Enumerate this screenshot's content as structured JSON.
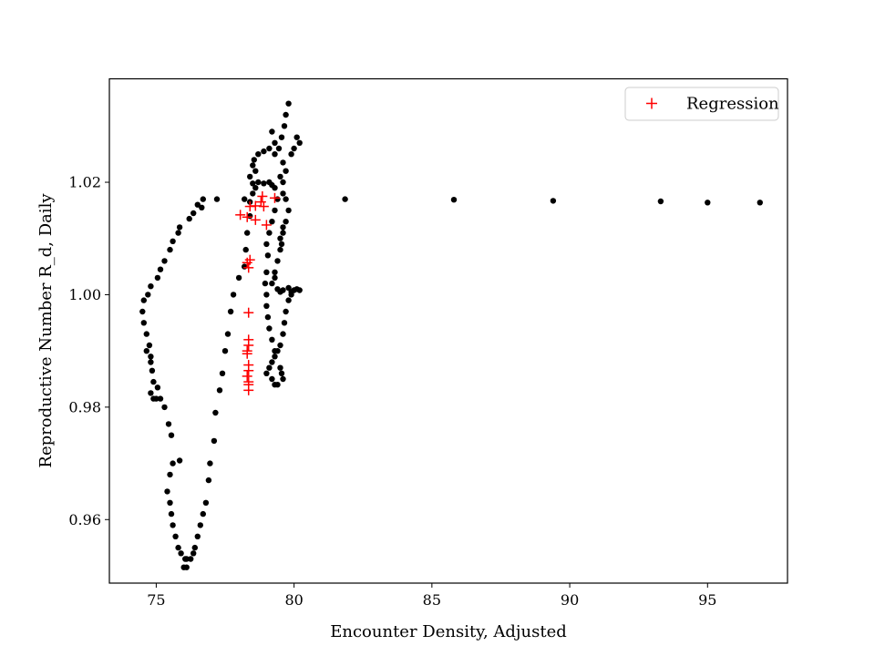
{
  "chart_data": {
    "type": "scatter",
    "xlabel": "Encounter Density, Adjusted",
    "ylabel": "Reproductive Number R_d, Daily",
    "xlim": [
      73.3,
      97.9
    ],
    "ylim": [
      0.9487,
      1.0384
    ],
    "xticks": [
      75,
      80,
      85,
      90,
      95
    ],
    "yticks": [
      0.96,
      0.98,
      1.0,
      1.02
    ],
    "xtick_labels": [
      "75",
      "80",
      "85",
      "90",
      "95"
    ],
    "ytick_labels": [
      "0.96",
      "0.98",
      "1.00",
      "1.02"
    ],
    "grid": false,
    "legend": {
      "position": "top-right",
      "entries": [
        "Regression"
      ]
    },
    "series": [
      {
        "marker": "dot",
        "color": "#000000",
        "points": [
          [
            96.9,
            1.0164
          ],
          [
            95.0,
            1.0164
          ],
          [
            93.3,
            1.0166
          ],
          [
            89.4,
            1.0167
          ],
          [
            85.8,
            1.0169
          ],
          [
            81.85,
            1.017
          ],
          [
            79.8,
            1.034
          ],
          [
            79.7,
            1.032
          ],
          [
            79.65,
            1.03
          ],
          [
            79.55,
            1.028
          ],
          [
            79.45,
            1.026
          ],
          [
            79.3,
            1.025
          ],
          [
            79.2,
            1.029
          ],
          [
            79.3,
            1.027
          ],
          [
            80.1,
            1.028
          ],
          [
            80.2,
            1.027
          ],
          [
            80.0,
            1.026
          ],
          [
            79.9,
            1.025
          ],
          [
            79.6,
            1.0235
          ],
          [
            79.7,
            1.022
          ],
          [
            79.5,
            1.021
          ],
          [
            79.6,
            1.02
          ],
          [
            79.6,
            1.018
          ],
          [
            79.7,
            1.017
          ],
          [
            79.8,
            1.015
          ],
          [
            79.7,
            1.013
          ],
          [
            79.6,
            1.012
          ],
          [
            79.6,
            1.011
          ],
          [
            79.5,
            1.01
          ],
          [
            79.55,
            1.009
          ],
          [
            79.5,
            1.008
          ],
          [
            79.4,
            1.006
          ],
          [
            79.3,
            1.004
          ],
          [
            79.3,
            1.003
          ],
          [
            79.2,
            1.002
          ],
          [
            79.4,
            1.001
          ],
          [
            79.5,
            1.0005
          ],
          [
            79.6,
            1.0008
          ],
          [
            79.8,
            1.0012
          ],
          [
            79.9,
            1.0005
          ],
          [
            80.0,
            1.0008
          ],
          [
            80.1,
            1.001
          ],
          [
            80.2,
            1.0008
          ],
          [
            79.9,
            1.0
          ],
          [
            79.8,
            0.999
          ],
          [
            79.7,
            0.997
          ],
          [
            79.65,
            0.995
          ],
          [
            79.6,
            0.993
          ],
          [
            79.5,
            0.991
          ],
          [
            79.4,
            0.99
          ],
          [
            79.3,
            0.989
          ],
          [
            79.2,
            0.988
          ],
          [
            79.1,
            0.987
          ],
          [
            79.0,
            0.986
          ],
          [
            79.2,
            0.985
          ],
          [
            79.3,
            0.984
          ],
          [
            79.4,
            0.984
          ],
          [
            79.6,
            0.985
          ],
          [
            79.55,
            0.986
          ],
          [
            79.5,
            0.987
          ],
          [
            79.3,
            0.99
          ],
          [
            79.2,
            0.992
          ],
          [
            79.1,
            0.994
          ],
          [
            79.05,
            0.996
          ],
          [
            79.0,
            0.998
          ],
          [
            79.0,
            1.0
          ],
          [
            78.95,
            1.002
          ],
          [
            79.0,
            1.004
          ],
          [
            79.05,
            1.007
          ],
          [
            79.0,
            1.009
          ],
          [
            79.1,
            1.011
          ],
          [
            79.2,
            1.013
          ],
          [
            79.3,
            1.015
          ],
          [
            79.4,
            1.017
          ],
          [
            79.3,
            1.019
          ],
          [
            79.2,
            1.0195
          ],
          [
            79.1,
            1.02
          ],
          [
            78.9,
            1.0198
          ],
          [
            78.7,
            1.02
          ],
          [
            78.5,
            1.0198
          ],
          [
            78.4,
            1.0165
          ],
          [
            78.5,
            1.018
          ],
          [
            78.6,
            1.019
          ],
          [
            78.4,
            1.021
          ],
          [
            78.5,
            1.023
          ],
          [
            78.55,
            1.024
          ],
          [
            78.7,
            1.025
          ],
          [
            78.9,
            1.0255
          ],
          [
            79.1,
            1.026
          ],
          [
            78.6,
            1.022
          ],
          [
            78.4,
            1.014
          ],
          [
            78.3,
            1.011
          ],
          [
            78.25,
            1.008
          ],
          [
            78.2,
            1.005
          ],
          [
            78.0,
            1.003
          ],
          [
            77.8,
            1.0
          ],
          [
            77.7,
            0.997
          ],
          [
            77.6,
            0.993
          ],
          [
            77.5,
            0.99
          ],
          [
            77.4,
            0.986
          ],
          [
            77.3,
            0.983
          ],
          [
            77.15,
            0.979
          ],
          [
            77.1,
            0.974
          ],
          [
            76.95,
            0.97
          ],
          [
            76.9,
            0.967
          ],
          [
            76.8,
            0.963
          ],
          [
            76.7,
            0.961
          ],
          [
            76.6,
            0.959
          ],
          [
            76.5,
            0.957
          ],
          [
            76.4,
            0.955
          ],
          [
            76.35,
            0.954
          ],
          [
            76.25,
            0.953
          ],
          [
            76.1,
            0.9515
          ],
          [
            76.0,
            0.9515
          ],
          [
            76.1,
            0.953
          ],
          [
            76.05,
            0.953
          ],
          [
            75.9,
            0.954
          ],
          [
            75.8,
            0.955
          ],
          [
            75.7,
            0.957
          ],
          [
            75.6,
            0.959
          ],
          [
            75.55,
            0.961
          ],
          [
            75.5,
            0.963
          ],
          [
            75.4,
            0.965
          ],
          [
            75.5,
            0.968
          ],
          [
            75.6,
            0.97
          ],
          [
            75.85,
            0.9705
          ],
          [
            75.55,
            0.975
          ],
          [
            75.45,
            0.977
          ],
          [
            75.3,
            0.98
          ],
          [
            75.15,
            0.9815
          ],
          [
            75.05,
            0.9835
          ],
          [
            74.9,
            0.9845
          ],
          [
            74.85,
            0.9865
          ],
          [
            74.8,
            0.989
          ],
          [
            74.75,
            0.991
          ],
          [
            74.65,
            0.993
          ],
          [
            74.55,
            0.995
          ],
          [
            74.5,
            0.997
          ],
          [
            74.55,
            0.999
          ],
          [
            74.7,
            1.0
          ],
          [
            74.8,
            1.0015
          ],
          [
            75.05,
            1.003
          ],
          [
            75.15,
            1.0045
          ],
          [
            75.3,
            1.006
          ],
          [
            75.5,
            1.008
          ],
          [
            75.6,
            1.0095
          ],
          [
            75.8,
            1.011
          ],
          [
            76.2,
            1.0135
          ],
          [
            76.35,
            1.0145
          ],
          [
            76.5,
            1.016
          ],
          [
            76.7,
            1.017
          ],
          [
            77.2,
            1.017
          ],
          [
            78.2,
            1.017
          ],
          [
            74.65,
            0.99
          ],
          [
            74.8,
            0.988
          ],
          [
            74.8,
            0.9825
          ],
          [
            74.9,
            0.9815
          ],
          [
            75.0,
            0.9815
          ],
          [
            76.65,
            1.0155
          ],
          [
            75.85,
            1.012
          ]
        ]
      },
      {
        "name": "Regression",
        "marker": "plus",
        "color": "#ff0000",
        "points": [
          [
            78.05,
            1.0142
          ],
          [
            78.3,
            1.0138
          ],
          [
            78.6,
            1.0133
          ],
          [
            78.4,
            1.0157
          ],
          [
            78.6,
            1.0158
          ],
          [
            78.8,
            1.0165
          ],
          [
            78.9,
            1.0157
          ],
          [
            79.0,
            1.0124
          ],
          [
            79.3,
            1.0172
          ],
          [
            78.85,
            1.0175
          ],
          [
            78.4,
            1.0062
          ],
          [
            78.35,
            1.0048
          ],
          [
            78.3,
            1.0057
          ],
          [
            78.35,
            0.9968
          ],
          [
            78.35,
            0.992
          ],
          [
            78.35,
            0.991
          ],
          [
            78.3,
            0.99
          ],
          [
            78.3,
            0.9895
          ],
          [
            78.35,
            0.9875
          ],
          [
            78.35,
            0.9865
          ],
          [
            78.3,
            0.9855
          ],
          [
            78.35,
            0.9845
          ],
          [
            78.35,
            0.984
          ],
          [
            78.35,
            0.983
          ]
        ]
      }
    ]
  }
}
